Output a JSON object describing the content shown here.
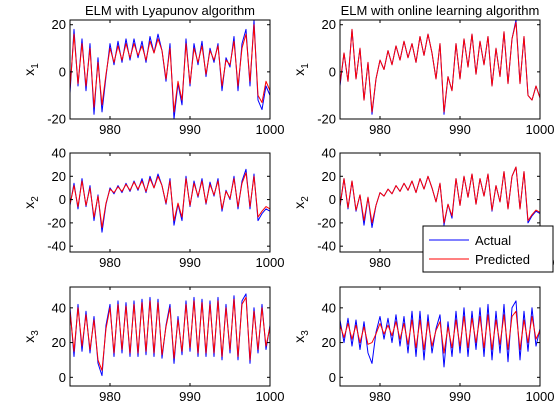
{
  "colors": {
    "actual": "#0000ff",
    "predicted": "#ff0000",
    "axes": "#000000",
    "background": "#ffffff",
    "legend_box": "#000000"
  },
  "legend": {
    "position": "lower-right of middle-right panel",
    "entries": [
      {
        "label": "Actual",
        "color": "#0000ff"
      },
      {
        "label": "Predicted",
        "color": "#ff0000"
      }
    ]
  },
  "chart_data": [
    {
      "type": "line",
      "title": "ELM with Lyapunov algorithm",
      "ylabel": "x",
      "ylabel_sub": "1",
      "xlim": [
        975,
        1000
      ],
      "ylim": [
        -20,
        22
      ],
      "xticks": [
        980,
        990,
        1000
      ],
      "yticks": [
        -20,
        0,
        20
      ],
      "x": [
        975.0,
        975.5,
        976.0,
        976.5,
        977.0,
        977.5,
        978.0,
        978.5,
        979.0,
        979.5,
        980.0,
        980.5,
        981.0,
        981.5,
        982.0,
        982.5,
        983.0,
        983.5,
        984.0,
        984.5,
        985.0,
        985.5,
        986.0,
        986.5,
        987.0,
        987.5,
        988.0,
        988.5,
        989.0,
        989.5,
        990.0,
        990.5,
        991.0,
        991.5,
        992.0,
        992.5,
        993.0,
        993.5,
        994.0,
        994.5,
        995.0,
        995.5,
        996.0,
        996.5,
        997.0,
        997.5,
        998.0,
        998.5,
        999.0,
        999.5,
        1000.0
      ],
      "series": [
        {
          "name": "Actual",
          "values": [
            -9,
            18,
            -6,
            14,
            -8,
            12,
            -18,
            6,
            -17,
            -2,
            12,
            3,
            13,
            4,
            14,
            5,
            14,
            6,
            13,
            4,
            15,
            8,
            16,
            9,
            -4,
            12,
            -20,
            -5,
            -14,
            14,
            -6,
            12,
            3,
            13,
            -2,
            10,
            4,
            12,
            -8,
            6,
            2,
            15,
            -8,
            12,
            18,
            -6,
            22,
            -12,
            -16,
            -6,
            -10
          ]
        },
        {
          "name": "Predicted",
          "values": [
            -7,
            16,
            -5,
            12,
            -6,
            10,
            -15,
            4,
            -14,
            -1,
            10,
            4,
            11,
            5,
            12,
            6,
            12,
            7,
            11,
            5,
            13,
            8,
            14,
            9,
            -3,
            10,
            -17,
            -4,
            -12,
            12,
            -5,
            10,
            4,
            11,
            -1,
            9,
            5,
            11,
            -6,
            5,
            3,
            13,
            -6,
            10,
            16,
            -4,
            20,
            -10,
            -13,
            -4,
            -8
          ]
        }
      ]
    },
    {
      "type": "line",
      "title": "ELM with online learning algorithm",
      "ylabel": "x",
      "ylabel_sub": "1",
      "xlim": [
        975,
        1000
      ],
      "ylim": [
        -20,
        22
      ],
      "xticks": [
        980,
        990,
        1000
      ],
      "yticks": [
        -20,
        0,
        20
      ],
      "x": [
        975.0,
        975.5,
        976.0,
        976.5,
        977.0,
        977.5,
        978.0,
        978.5,
        979.0,
        979.5,
        980.0,
        980.5,
        981.0,
        981.5,
        982.0,
        982.5,
        983.0,
        983.5,
        984.0,
        984.5,
        985.0,
        985.5,
        986.0,
        986.5,
        987.0,
        987.5,
        988.0,
        988.5,
        989.0,
        989.5,
        990.0,
        990.5,
        991.0,
        991.5,
        992.0,
        992.5,
        993.0,
        993.5,
        994.0,
        994.5,
        995.0,
        995.5,
        996.0,
        996.5,
        997.0,
        997.5,
        998.0,
        998.5,
        999.0,
        999.5,
        1000.0
      ],
      "series": [
        {
          "name": "Actual",
          "values": [
            -6,
            8,
            -4,
            18,
            -3,
            10,
            -12,
            4,
            -18,
            -3,
            5,
            1,
            9,
            3,
            11,
            5,
            13,
            6,
            12,
            4,
            15,
            7,
            16,
            8,
            -3,
            12,
            -18,
            -2,
            -8,
            12,
            -3,
            14,
            2,
            16,
            -1,
            13,
            3,
            15,
            -6,
            10,
            -2,
            17,
            -5,
            14,
            22,
            -5,
            15,
            -10,
            -12,
            -6,
            -11
          ]
        },
        {
          "name": "Predicted",
          "values": [
            -5,
            8,
            -4,
            18,
            -3,
            10,
            -12,
            4,
            -17,
            -3,
            5,
            1,
            9,
            3,
            11,
            5,
            13,
            6,
            12,
            4,
            15,
            7,
            16,
            8,
            -3,
            12,
            -17,
            -2,
            -8,
            12,
            -3,
            14,
            2,
            16,
            -1,
            13,
            3,
            15,
            -6,
            10,
            -2,
            17,
            -5,
            14,
            21,
            -5,
            15,
            -10,
            -12,
            -6,
            -11
          ]
        }
      ]
    },
    {
      "type": "line",
      "title": "",
      "ylabel": "x",
      "ylabel_sub": "2",
      "xlim": [
        975,
        1000
      ],
      "ylim": [
        -45,
        40
      ],
      "xticks": [
        980,
        990,
        1000
      ],
      "yticks": [
        -40,
        -20,
        0,
        20,
        40
      ],
      "x": [
        975.0,
        975.5,
        976.0,
        976.5,
        977.0,
        977.5,
        978.0,
        978.5,
        979.0,
        979.5,
        980.0,
        980.5,
        981.0,
        981.5,
        982.0,
        982.5,
        983.0,
        983.5,
        984.0,
        984.5,
        985.0,
        985.5,
        986.0,
        986.5,
        987.0,
        987.5,
        988.0,
        988.5,
        989.0,
        989.5,
        990.0,
        990.5,
        991.0,
        991.5,
        992.0,
        992.5,
        993.0,
        993.5,
        994.0,
        994.5,
        995.0,
        995.5,
        996.0,
        996.5,
        997.0,
        997.5,
        998.0,
        998.5,
        999.0,
        999.5,
        1000.0
      ],
      "series": [
        {
          "name": "Actual",
          "values": [
            -5,
            14,
            -8,
            18,
            -6,
            12,
            -18,
            4,
            -28,
            -4,
            10,
            5,
            12,
            6,
            14,
            7,
            16,
            8,
            18,
            6,
            20,
            10,
            22,
            12,
            -4,
            18,
            -22,
            -4,
            -18,
            20,
            -6,
            16,
            2,
            18,
            -4,
            15,
            3,
            18,
            -10,
            8,
            0,
            20,
            -8,
            16,
            26,
            -8,
            22,
            -18,
            -12,
            -8,
            -10
          ]
        },
        {
          "name": "Predicted",
          "values": [
            -4,
            12,
            -6,
            16,
            -5,
            10,
            -15,
            3,
            -24,
            -3,
            9,
            6,
            11,
            7,
            13,
            8,
            15,
            9,
            16,
            7,
            18,
            10,
            20,
            12,
            -3,
            16,
            -18,
            -3,
            -15,
            18,
            -5,
            14,
            3,
            16,
            -3,
            13,
            4,
            16,
            -8,
            7,
            1,
            18,
            -6,
            14,
            23,
            -6,
            20,
            -15,
            -10,
            -6,
            -8
          ]
        }
      ]
    },
    {
      "type": "line",
      "title": "",
      "ylabel": "x",
      "ylabel_sub": "2",
      "xlim": [
        975,
        1000
      ],
      "ylim": [
        -45,
        40
      ],
      "xticks": [
        980,
        990,
        1000
      ],
      "yticks": [
        -40,
        -20,
        0,
        20,
        40
      ],
      "x": [
        975.0,
        975.5,
        976.0,
        976.5,
        977.0,
        977.5,
        978.0,
        978.5,
        979.0,
        979.5,
        980.0,
        980.5,
        981.0,
        981.5,
        982.0,
        982.5,
        983.0,
        983.5,
        984.0,
        984.5,
        985.0,
        985.5,
        986.0,
        986.5,
        987.0,
        987.5,
        988.0,
        988.5,
        989.0,
        989.5,
        990.0,
        990.5,
        991.0,
        991.5,
        992.0,
        992.5,
        993.0,
        993.5,
        994.0,
        994.5,
        995.0,
        995.5,
        996.0,
        996.5,
        997.0,
        997.5,
        998.0,
        998.5,
        999.0,
        999.5,
        1000.0
      ],
      "series": [
        {
          "name": "Actual",
          "values": [
            -6,
            18,
            -8,
            16,
            -10,
            4,
            -22,
            2,
            -24,
            -5,
            6,
            3,
            9,
            5,
            12,
            7,
            14,
            8,
            16,
            6,
            18,
            9,
            20,
            10,
            -2,
            14,
            -22,
            -4,
            -16,
            18,
            -5,
            20,
            2,
            22,
            -4,
            18,
            3,
            22,
            -10,
            12,
            -2,
            24,
            -8,
            20,
            28,
            -8,
            24,
            -20,
            -14,
            -10,
            -12
          ]
        },
        {
          "name": "Predicted",
          "values": [
            -5,
            18,
            -7,
            16,
            -9,
            4,
            -18,
            2,
            -20,
            -5,
            6,
            3,
            9,
            5,
            12,
            7,
            14,
            8,
            16,
            6,
            18,
            9,
            20,
            10,
            -2,
            14,
            -20,
            -4,
            -14,
            18,
            -5,
            20,
            2,
            22,
            -4,
            18,
            3,
            22,
            -9,
            12,
            -2,
            24,
            -8,
            20,
            28,
            -8,
            24,
            -18,
            -13,
            -9,
            -11
          ]
        }
      ]
    },
    {
      "type": "line",
      "title": "",
      "ylabel": "x",
      "ylabel_sub": "3",
      "xlim": [
        975,
        1000
      ],
      "ylim": [
        -5,
        52
      ],
      "xticks": [
        980,
        990,
        1000
      ],
      "yticks": [
        0,
        20,
        40
      ],
      "x": [
        975.0,
        975.5,
        976.0,
        976.5,
        977.0,
        977.5,
        978.0,
        978.5,
        979.0,
        979.5,
        980.0,
        980.5,
        981.0,
        981.5,
        982.0,
        982.5,
        983.0,
        983.5,
        984.0,
        984.5,
        985.0,
        985.5,
        986.0,
        986.5,
        987.0,
        987.5,
        988.0,
        988.5,
        989.0,
        989.5,
        990.0,
        990.5,
        991.0,
        991.5,
        992.0,
        992.5,
        993.0,
        993.5,
        994.0,
        994.5,
        995.0,
        995.5,
        996.0,
        996.5,
        997.0,
        997.5,
        998.0,
        998.5,
        999.0,
        999.5,
        1000.0
      ],
      "series": [
        {
          "name": "Actual",
          "values": [
            40,
            12,
            42,
            15,
            38,
            14,
            35,
            8,
            1,
            30,
            42,
            12,
            44,
            14,
            43,
            12,
            44,
            12,
            45,
            13,
            46,
            12,
            45,
            11,
            30,
            42,
            8,
            35,
            13,
            44,
            15,
            46,
            12,
            45,
            12,
            44,
            12,
            46,
            10,
            42,
            14,
            47,
            10,
            44,
            48,
            8,
            40,
            14,
            42,
            16,
            30
          ]
        },
        {
          "name": "Predicted",
          "values": [
            38,
            15,
            40,
            18,
            36,
            16,
            33,
            10,
            4,
            28,
            40,
            14,
            42,
            16,
            41,
            14,
            42,
            14,
            43,
            15,
            44,
            14,
            43,
            13,
            29,
            40,
            11,
            33,
            15,
            42,
            17,
            44,
            14,
            43,
            14,
            42,
            14,
            44,
            12,
            40,
            16,
            45,
            12,
            42,
            46,
            10,
            38,
            16,
            40,
            18,
            29
          ]
        }
      ]
    },
    {
      "type": "line",
      "title": "",
      "ylabel": "x",
      "ylabel_sub": "3",
      "xlim": [
        975,
        1000
      ],
      "ylim": [
        -5,
        52
      ],
      "xticks": [
        980,
        990,
        1000
      ],
      "yticks": [
        0,
        20,
        40
      ],
      "x": [
        975.0,
        975.5,
        976.0,
        976.5,
        977.0,
        977.5,
        978.0,
        978.5,
        979.0,
        979.5,
        980.0,
        980.5,
        981.0,
        981.5,
        982.0,
        982.5,
        983.0,
        983.5,
        984.0,
        984.5,
        985.0,
        985.5,
        986.0,
        986.5,
        987.0,
        987.5,
        988.0,
        988.5,
        989.0,
        989.5,
        990.0,
        990.5,
        991.0,
        991.5,
        992.0,
        992.5,
        993.0,
        993.5,
        994.0,
        994.5,
        995.0,
        995.5,
        996.0,
        996.5,
        997.0,
        997.5,
        998.0,
        998.5,
        999.0,
        999.5,
        1000.0
      ],
      "series": [
        {
          "name": "Actual",
          "values": [
            33,
            20,
            34,
            18,
            33,
            16,
            32,
            14,
            8,
            26,
            35,
            22,
            34,
            20,
            36,
            18,
            35,
            14,
            38,
            12,
            38,
            10,
            36,
            14,
            28,
            36,
            6,
            32,
            12,
            38,
            14,
            40,
            12,
            38,
            16,
            40,
            12,
            42,
            10,
            38,
            14,
            42,
            9,
            40,
            44,
            10,
            38,
            15,
            40,
            18,
            28
          ]
        },
        {
          "name": "Predicted",
          "values": [
            30,
            23,
            31,
            22,
            30,
            20,
            29,
            19,
            20,
            25,
            31,
            25,
            30,
            24,
            32,
            22,
            31,
            19,
            33,
            17,
            33,
            16,
            32,
            18,
            27,
            32,
            14,
            29,
            17,
            33,
            18,
            35,
            17,
            34,
            20,
            35,
            17,
            36,
            16,
            33,
            19,
            36,
            16,
            35,
            38,
            16,
            33,
            20,
            35,
            22,
            27
          ]
        }
      ]
    }
  ]
}
